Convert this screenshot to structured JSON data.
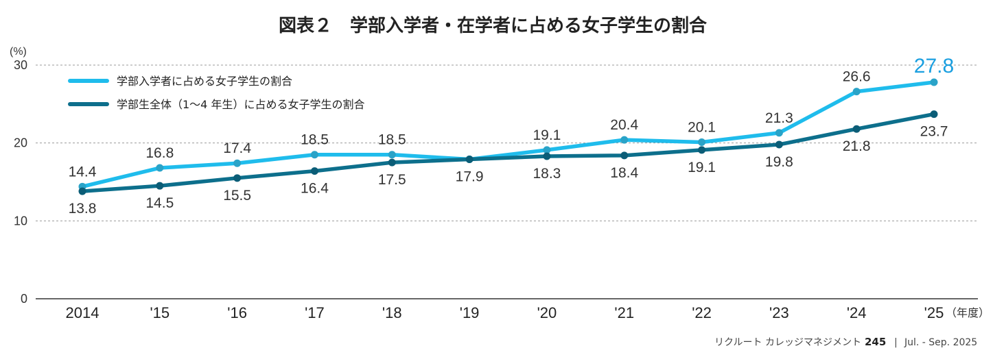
{
  "chart_data": {
    "type": "line",
    "title": "図表２　学部入学者・在学者に占める女子学生の割合",
    "y_unit": "(%)",
    "x_unit": "（年度）",
    "categories": [
      "2014",
      "'15",
      "'16",
      "'17",
      "'18",
      "'19",
      "'20",
      "'21",
      "'22",
      "'23",
      "'24",
      "'25"
    ],
    "ylim": [
      0,
      30
    ],
    "yticks": [
      0,
      10,
      20,
      30
    ],
    "grid": "horizontal dashed",
    "legend_position": "top-left",
    "series": [
      {
        "name": "学部入学者に占める女子学生の割合",
        "color": "#1fbcec",
        "values": [
          14.4,
          16.8,
          17.4,
          18.5,
          18.5,
          17.9,
          19.1,
          20.4,
          20.1,
          21.3,
          26.6,
          27.8
        ],
        "labels": [
          "14.4",
          "16.8",
          "17.4",
          "18.5",
          "18.5",
          "",
          "19.1",
          "20.4",
          "20.1",
          "21.3",
          "26.6",
          "27.8"
        ],
        "label_position": "above"
      },
      {
        "name": "学部生全体（1～4 年生）に占める女子学生の割合",
        "color": "#0d6f8c",
        "values": [
          13.8,
          14.5,
          15.5,
          16.4,
          17.5,
          17.9,
          18.3,
          18.4,
          19.1,
          19.8,
          21.8,
          23.7
        ],
        "labels": [
          "13.8",
          "14.5",
          "15.5",
          "16.4",
          "17.5",
          "17.9",
          "18.3",
          "18.4",
          "19.1",
          "19.8",
          "21.8",
          "23.7"
        ],
        "label_position": "below"
      }
    ],
    "highlight_label_color": "#1a9fe0"
  },
  "footer": {
    "publication": "リクルート カレッジマネジメント",
    "issue": "245",
    "separator": "|",
    "date": "Jul. - Sep. 2025"
  }
}
